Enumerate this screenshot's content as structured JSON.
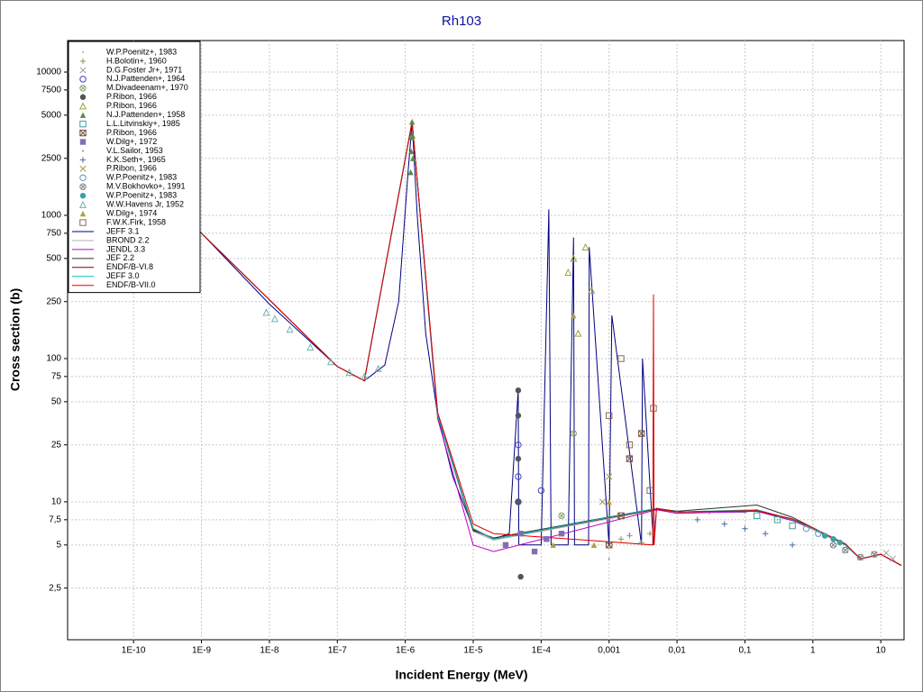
{
  "chart_data": {
    "type": "scatter",
    "title": "Rh103",
    "xlabel": "Incident Energy (MeV)",
    "ylabel": "Cross section (b)",
    "xscale": "log",
    "yscale": "log",
    "xlim": [
      1.07e-11,
      22
    ],
    "ylim": [
      1.09,
      16600
    ],
    "grid": true,
    "legend": "upper left",
    "xticks": [
      {
        "value": 1e-10,
        "label": "1E-10"
      },
      {
        "value": 1e-09,
        "label": "1E-9"
      },
      {
        "value": 1e-08,
        "label": "1E-8"
      },
      {
        "value": 1e-07,
        "label": "1E-7"
      },
      {
        "value": 1e-06,
        "label": "1E-6"
      },
      {
        "value": 1e-05,
        "label": "1E-5"
      },
      {
        "value": 0.0001,
        "label": "1E-4"
      },
      {
        "value": 0.001,
        "label": "0,001"
      },
      {
        "value": 0.01,
        "label": "0,01"
      },
      {
        "value": 0.1,
        "label": "0,1"
      },
      1,
      10
    ],
    "yticks": [
      10000,
      7500,
      5000,
      2500,
      1000,
      750,
      500,
      250,
      100,
      75,
      50,
      25,
      10,
      {
        "value": 7.5,
        "label": "7,5"
      },
      5,
      {
        "value": 2.5,
        "label": "2,5"
      }
    ],
    "series": [
      {
        "name": "W.P.Poenitz+, 1983",
        "marker": "dot",
        "color": "#909090",
        "x": [
          0.01,
          0.03,
          0.1,
          0.3
        ],
        "values": [
          8.5,
          8.3,
          8.4,
          7.5
        ]
      },
      {
        "name": "H.Bolotin+, 1960",
        "marker": "plus",
        "color": "#8a9a4a",
        "x": [
          0.0015,
          0.002,
          0.003,
          0.004
        ],
        "values": [
          5.5,
          5.8,
          5.2,
          6
        ]
      },
      {
        "name": "D.G.Foster Jr+, 1971",
        "marker": "x",
        "color": "#a0a0a0",
        "x": [
          3,
          5,
          8,
          12,
          15
        ],
        "values": [
          4.6,
          4.1,
          4.3,
          4.4,
          4.0
        ]
      },
      {
        "name": "N.J.Pattenden+, 1964",
        "marker": "circle",
        "color": "#4040c0",
        "x": [
          4.6e-05,
          4.6e-05,
          4.6e-05,
          0.0001
        ],
        "values": [
          10,
          25,
          15,
          12
        ]
      },
      {
        "name": "M.Divadeenam+, 1970",
        "marker": "circle-x",
        "color": "#8aa070",
        "x": [
          0.0002,
          0.0003
        ],
        "values": [
          8,
          30
        ]
      },
      {
        "name": "P.Ribon, 1966",
        "marker": "filled-circle",
        "color": "#555555",
        "x": [
          4.6e-05,
          4.6e-05,
          4.6e-05,
          4.6e-05,
          5e-05
        ],
        "values": [
          60,
          40,
          20,
          10,
          3
        ]
      },
      {
        "name": "P.Ribon, 1966",
        "marker": "triangle",
        "color": "#a0a040",
        "x": [
          0.00025,
          0.0003,
          0.00035,
          0.00045,
          0.00055
        ],
        "values": [
          400,
          500,
          150,
          600,
          300
        ]
      },
      {
        "name": "N.J.Pattenden+, 1958",
        "marker": "filled-triangle",
        "color": "#5a8a4a",
        "x": [
          1.2e-06,
          1.22e-06,
          1.24e-06,
          1.26e-06,
          1.28e-06,
          1.3e-06
        ],
        "values": [
          2000,
          2800,
          3500,
          4500,
          3600,
          2500
        ]
      },
      {
        "name": "L.L.Litvinskiy+, 1985",
        "marker": "square",
        "color": "#40a0a0",
        "x": [
          0.15,
          0.3,
          0.5
        ],
        "values": [
          8,
          7.5,
          6.8
        ]
      },
      {
        "name": "P.Ribon, 1966",
        "marker": "square-x",
        "color": "#705040",
        "x": [
          0.001,
          0.0015,
          0.002,
          0.003
        ],
        "values": [
          5,
          8,
          20,
          30
        ]
      },
      {
        "name": "W.Dilg+, 1972",
        "marker": "filled-square",
        "color": "#8070b0",
        "x": [
          3e-05,
          5e-05,
          8e-05,
          0.00012,
          0.0002
        ],
        "values": [
          5,
          6,
          4.5,
          5.5,
          6
        ]
      },
      {
        "name": "V.L.Sailor, 1953",
        "marker": "dot",
        "color": "#707070",
        "x": [
          0.001,
          0.002
        ],
        "values": [
          4,
          6
        ]
      },
      {
        "name": "K.K.Seth+, 1965",
        "marker": "plus",
        "color": "#4a6aaa",
        "x": [
          0.02,
          0.05,
          0.1,
          0.2,
          0.5
        ],
        "values": [
          7.5,
          7,
          6.5,
          6,
          5
        ]
      },
      {
        "name": "P.Ribon, 1966",
        "marker": "x",
        "color": "#9a9a50",
        "x": [
          0.0008,
          0.001
        ],
        "values": [
          10,
          15
        ]
      },
      {
        "name": "W.P.Poenitz+, 1983",
        "marker": "circle",
        "color": "#6090c0",
        "x": [
          0.8,
          1.2
        ],
        "values": [
          6.5,
          6
        ]
      },
      {
        "name": "M.V.Bokhovko+, 1991",
        "marker": "circle-x",
        "color": "#808080",
        "x": [
          2,
          3,
          5,
          8
        ],
        "values": [
          5,
          4.6,
          4.1,
          4.3
        ]
      },
      {
        "name": "W.P.Poenitz+, 1983",
        "marker": "filled-circle",
        "color": "#40a0a0",
        "x": [
          1.5,
          2,
          2.5
        ],
        "values": [
          5.8,
          5.5,
          5.2
        ]
      },
      {
        "name": "W.W.Havens Jr, 1952",
        "marker": "triangle",
        "color": "#70b0b0",
        "x": [
          9e-09,
          1.2e-08,
          2e-08,
          4e-08,
          8e-08,
          1.5e-07,
          2.5e-07,
          4e-07
        ],
        "values": [
          210,
          190,
          160,
          120,
          95,
          80,
          75,
          85
        ]
      },
      {
        "name": "W.Dilg+, 1974",
        "marker": "filled-triangle",
        "color": "#b0a040",
        "x": [
          0.00015,
          0.0003,
          0.0006,
          0.001
        ],
        "values": [
          5,
          200,
          5,
          10
        ]
      },
      {
        "name": "F.W.K.Firk, 1958",
        "marker": "square",
        "color": "#8a6a50",
        "x": [
          0.001,
          0.0015,
          0.002,
          0.003,
          0.004,
          0.0045
        ],
        "values": [
          40,
          100,
          25,
          30,
          12,
          45
        ]
      },
      {
        "name": "JEFF 3.1",
        "color": "#000080",
        "x": [
          1e-11,
          1e-09,
          1e-08,
          1e-07,
          2.5e-07,
          5e-07,
          8e-07,
          1.1e-06,
          1.26e-06,
          1.5e-06,
          2e-06,
          3e-06,
          5e-06,
          1e-05,
          2e-05,
          3.4e-05,
          4.6e-05,
          4.7e-05,
          0.0001,
          0.00013,
          0.00014,
          0.00025,
          0.0003,
          0.00031,
          0.0005,
          0.00051,
          0.001,
          0.0011,
          0.003,
          0.0031,
          0.0045,
          0.005,
          0.01,
          0.1,
          0.15,
          0.5,
          1,
          3,
          5,
          10,
          20
        ],
        "values": [
          7500,
          750,
          240,
          88,
          70,
          90,
          250,
          2000,
          4500,
          1000,
          150,
          40,
          15,
          6.5,
          5.5,
          6,
          60,
          5,
          5,
          1100,
          5,
          5,
          700,
          5,
          5,
          600,
          5,
          200,
          5,
          100,
          5,
          9,
          8.5,
          8.5,
          8.8,
          7.5,
          6.5,
          5,
          4,
          4.3,
          3.6
        ]
      },
      {
        "name": "BROND 2.2",
        "color": "#b0b0b0",
        "x": [
          1e-09,
          1e-07,
          2.5e-07,
          1.26e-06,
          3e-06,
          1e-05,
          2e-05,
          0.005,
          0.01,
          0.15,
          0.5,
          1,
          3,
          5,
          10,
          20
        ],
        "values": [
          750,
          88,
          70,
          4500,
          40,
          6.2,
          5.4,
          8.8,
          8.4,
          8.6,
          7.4,
          6.4,
          5,
          4,
          4.3,
          3.6
        ]
      },
      {
        "name": "JENDL 3.3",
        "color": "#c000c0",
        "x": [
          1e-09,
          1e-07,
          2.5e-07,
          1.26e-06,
          3e-06,
          1e-05,
          2e-05,
          0.005,
          0.01,
          0.15,
          0.5,
          1,
          3,
          5,
          10,
          20
        ],
        "values": [
          750,
          88,
          70,
          4500,
          38,
          5,
          4.5,
          8.8,
          8.3,
          8.6,
          7.4,
          6.5,
          5,
          4,
          4.3,
          3.6
        ]
      },
      {
        "name": "JEF 2.2",
        "color": "#303030",
        "x": [
          1e-09,
          1e-07,
          2.5e-07,
          1.26e-06,
          3e-06,
          1e-05,
          2e-05,
          0.005,
          0.01,
          0.15,
          0.5,
          1,
          3,
          5,
          10,
          20
        ],
        "values": [
          750,
          88,
          70,
          4500,
          40,
          6.3,
          5.6,
          9,
          8.6,
          9.5,
          7.8,
          6.6,
          5,
          4,
          4.3,
          3.6
        ]
      },
      {
        "name": "ENDF/B-VI.8",
        "color": "#800000",
        "x": [
          1e-09,
          1e-07,
          2.5e-07,
          1.26e-06,
          3e-06,
          1e-05,
          2e-05,
          0.005,
          0.01,
          0.15,
          0.5,
          1,
          3,
          5,
          10,
          20
        ],
        "values": [
          750,
          88,
          70,
          4500,
          41,
          6.4,
          5.5,
          8.9,
          8.5,
          8.7,
          7.5,
          6.5,
          5.1,
          4,
          4.3,
          3.6
        ]
      },
      {
        "name": "JEFF 3.0",
        "color": "#00c0c0",
        "x": [
          1e-09,
          1e-07,
          2.5e-07,
          1.26e-06,
          3e-06,
          1e-05,
          2e-05,
          0.005,
          0.01,
          0.15,
          0.5,
          1,
          3,
          5,
          10,
          20
        ],
        "values": [
          750,
          88,
          70,
          4500,
          40,
          6.5,
          5.5,
          9,
          8.5,
          8.8,
          7.5,
          6.5,
          5,
          4,
          4.3,
          3.6
        ]
      },
      {
        "name": "ENDF/B-VII.0",
        "color": "#e00000",
        "x": [
          1e-09,
          1e-07,
          2.5e-07,
          1.26e-06,
          3e-06,
          1e-05,
          2e-05,
          0.0044,
          0.0045,
          0.0046,
          0.005,
          0.01,
          0.15,
          0.5,
          1,
          3,
          5,
          10,
          20
        ],
        "values": [
          750,
          88,
          70,
          4500,
          42,
          7,
          6,
          5,
          280,
          5,
          9,
          8.5,
          8.7,
          7.6,
          6.6,
          5.1,
          4,
          4.3,
          3.6
        ]
      }
    ]
  }
}
